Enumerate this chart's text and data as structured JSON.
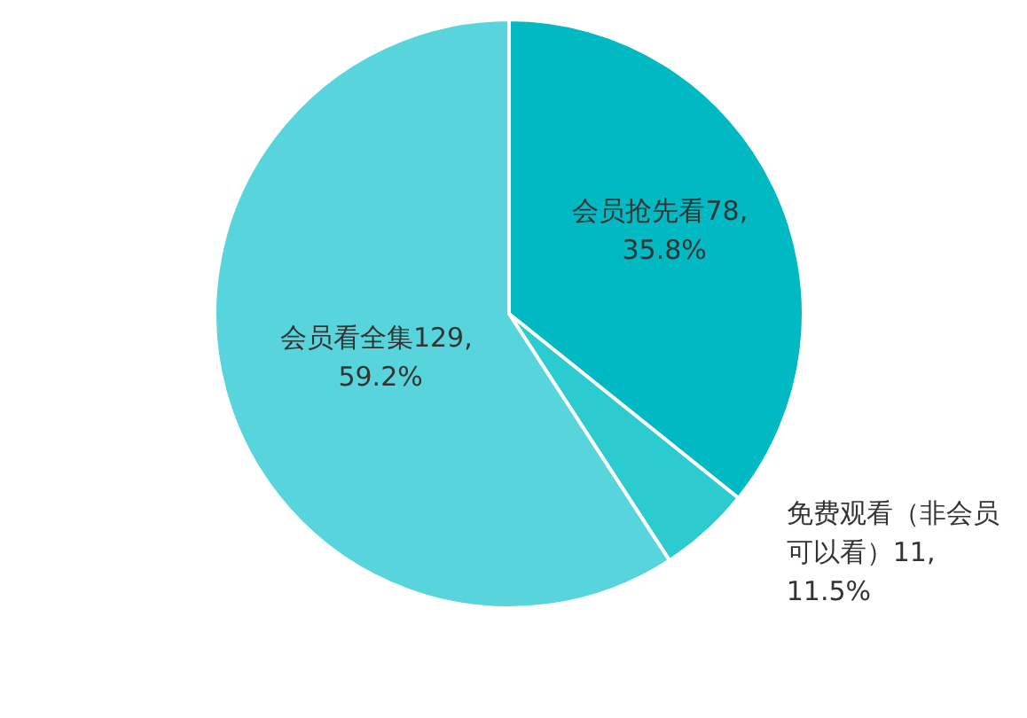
{
  "chart_data": {
    "type": "pie",
    "categories": [
      "会员抢先看",
      "免费观看（非会员可以看）",
      "会员看全集"
    ],
    "values": [
      78,
      11,
      129
    ],
    "value_labels": [
      "78, 35.8%",
      "11, 11.5%",
      "129, 59.2%"
    ],
    "colors": [
      "#00b9c3",
      "#2ccbd0",
      "#58d5dc"
    ],
    "legend": false
  }
}
